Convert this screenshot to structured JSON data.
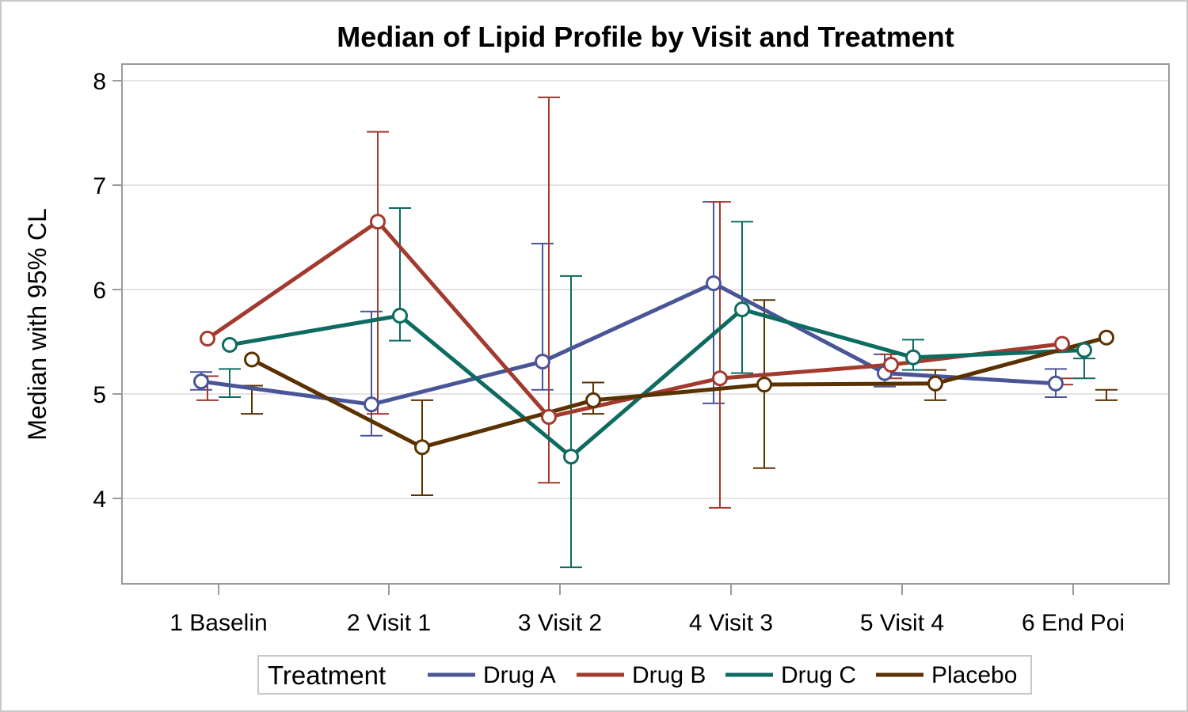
{
  "chart_data": {
    "type": "line",
    "title": "Median of Lipid Profile by Visit and Treatment",
    "xlabel": "",
    "ylabel": "Median with 95% CL",
    "categories": [
      "1  Baselin",
      "2  Visit 1",
      "3  Visit 2",
      "4  Visit 3",
      "5  Visit 4",
      "6  End Poi"
    ],
    "ylim": [
      3.2,
      8.2
    ],
    "yticks": [
      4,
      5,
      6,
      7,
      8
    ],
    "grid": true,
    "error_bars": "95% CL",
    "legend": {
      "title": "Treatment",
      "position": "bottom"
    },
    "series": [
      {
        "name": "Drug A",
        "color": "#4a5597",
        "values": [
          5.12,
          4.9,
          5.31,
          6.06,
          5.2,
          5.1
        ],
        "lower": [
          5.04,
          4.6,
          5.04,
          4.91,
          5.07,
          4.97
        ],
        "upper": [
          5.21,
          5.79,
          6.44,
          6.84,
          5.38,
          5.24
        ]
      },
      {
        "name": "Drug B",
        "color": "#a23a2e",
        "values": [
          5.53,
          6.65,
          4.78,
          5.15,
          5.28,
          5.48
        ],
        "lower": [
          4.94,
          4.81,
          4.15,
          3.91,
          5.15,
          5.09
        ],
        "upper": [
          5.17,
          7.51,
          7.84,
          6.84,
          5.38,
          5.15
        ]
      },
      {
        "name": "Drug C",
        "color": "#0d6b60",
        "values": [
          5.47,
          5.75,
          4.4,
          5.81,
          5.35,
          5.42
        ],
        "lower": [
          4.97,
          5.51,
          3.34,
          5.2,
          5.23,
          5.15
        ],
        "upper": [
          5.24,
          6.78,
          6.13,
          6.65,
          5.52,
          5.34
        ]
      },
      {
        "name": "Placebo",
        "color": "#5a3200",
        "values": [
          5.33,
          4.49,
          4.94,
          5.09,
          5.1,
          5.54
        ],
        "lower": [
          4.81,
          4.03,
          4.81,
          4.29,
          4.94,
          4.94
        ],
        "upper": [
          5.08,
          4.94,
          5.11,
          5.9,
          5.23,
          5.04
        ]
      }
    ]
  }
}
